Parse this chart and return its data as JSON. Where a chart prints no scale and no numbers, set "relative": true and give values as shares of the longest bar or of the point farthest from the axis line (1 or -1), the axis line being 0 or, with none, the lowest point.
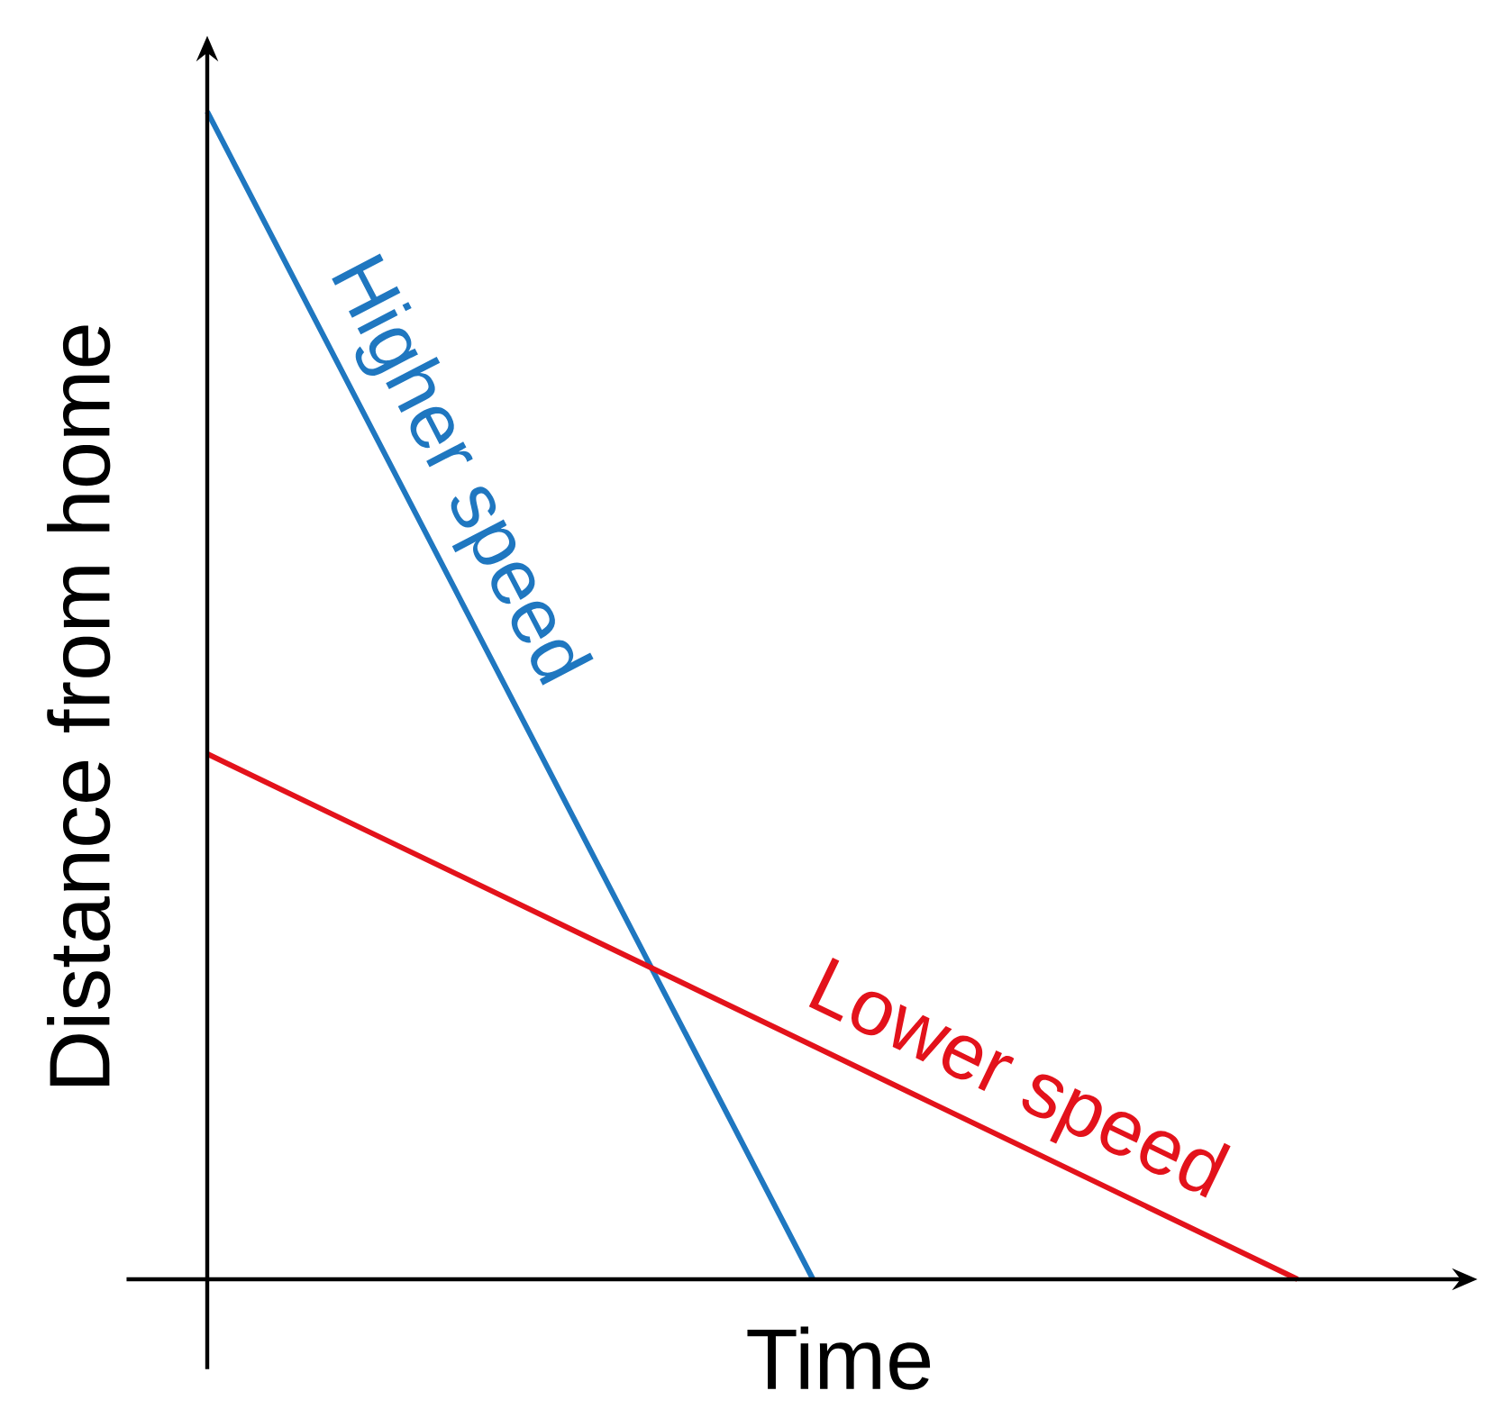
{
  "chart_data": {
    "type": "line",
    "relative": true,
    "xlabel": "Time",
    "ylabel": "Distance from home",
    "categories": [
      null,
      null,
      null,
      null,
      null,
      null,
      null,
      null,
      null,
      null
    ],
    "series": [
      {
        "name": "Higher speed",
        "color": "#1f77c0",
        "values": [
          1,
          0.8,
          0.6,
          0.4,
          0.2,
          0,
          null,
          null,
          null,
          null
        ]
      },
      {
        "name": "Lower speed",
        "color": "#e3121b",
        "values": [
          0.45,
          0.4,
          0.35,
          0.3,
          0.25,
          0.2,
          0.15,
          0.1,
          0.05,
          0
        ]
      }
    ]
  }
}
